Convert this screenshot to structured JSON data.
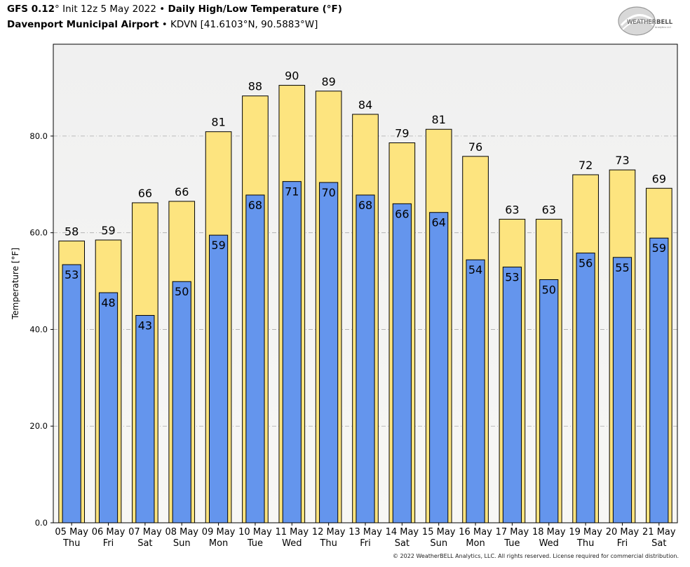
{
  "header": {
    "model": "GFS 0.12",
    "deg_mark": "°",
    "init": " Init 12z 5 May 2022",
    "bullet": " • ",
    "product": "Daily High/Low Temperature (°F)",
    "station": "Davenport Municipal Airport",
    "station_info": "KDVN [41.6103°N, 90.5883°W]"
  },
  "logo": {
    "text_main": "WEATHER",
    "text_bold": "BELL",
    "text_sub": "Analytics LLC"
  },
  "footer": {
    "copyright": "© 2022 WeatherBELL Analytics, LLC. All rights reserved. License required for commercial distribution."
  },
  "colors": {
    "high": "#fde47f",
    "low": "#6495ed",
    "plot_top": "#f0f0f0",
    "plot_bottom": "#f7f7f5",
    "grid": "#aaaaaa"
  },
  "chart_data": {
    "type": "bar",
    "ylabel": "Temperature [°F]",
    "ylim": [
      0,
      99
    ],
    "yticks": [
      "0.0",
      "20.0",
      "40.0",
      "60.0",
      "80.0"
    ],
    "ytick_values": [
      0,
      20,
      40,
      60,
      80
    ],
    "grid": true,
    "categories": [
      {
        "date": "05 May",
        "day": "Thu"
      },
      {
        "date": "06 May",
        "day": "Fri"
      },
      {
        "date": "07 May",
        "day": "Sat"
      },
      {
        "date": "08 May",
        "day": "Sun"
      },
      {
        "date": "09 May",
        "day": "Mon"
      },
      {
        "date": "10 May",
        "day": "Tue"
      },
      {
        "date": "11 May",
        "day": "Wed"
      },
      {
        "date": "12 May",
        "day": "Thu"
      },
      {
        "date": "13 May",
        "day": "Fri"
      },
      {
        "date": "14 May",
        "day": "Sat"
      },
      {
        "date": "15 May",
        "day": "Sun"
      },
      {
        "date": "16 May",
        "day": "Mon"
      },
      {
        "date": "17 May",
        "day": "Tue"
      },
      {
        "date": "18 May",
        "day": "Wed"
      },
      {
        "date": "19 May",
        "day": "Thu"
      },
      {
        "date": "20 May",
        "day": "Fri"
      },
      {
        "date": "21 May",
        "day": "Sat"
      }
    ],
    "series": [
      {
        "values": [
          58.3,
          58.5,
          66.2,
          66.5,
          80.9,
          88.3,
          90.5,
          89.3,
          84.5,
          78.6,
          81.4,
          75.8,
          62.8,
          62.8,
          72.0,
          73.0,
          69.2
        ],
        "labels": [
          "58",
          "59",
          "66",
          "66",
          "81",
          "88",
          "90",
          "89",
          "84",
          "79",
          "81",
          "76",
          "63",
          "63",
          "72",
          "73",
          "69"
        ]
      },
      {
        "values": [
          53.4,
          47.6,
          42.9,
          49.9,
          59.5,
          67.8,
          70.6,
          70.4,
          67.8,
          66.0,
          64.2,
          54.4,
          52.9,
          50.3,
          55.8,
          54.9,
          58.9
        ],
        "labels": [
          "53",
          "48",
          "43",
          "50",
          "59",
          "68",
          "71",
          "70",
          "68",
          "66",
          "64",
          "54",
          "53",
          "50",
          "56",
          "55",
          "59"
        ]
      }
    ]
  }
}
